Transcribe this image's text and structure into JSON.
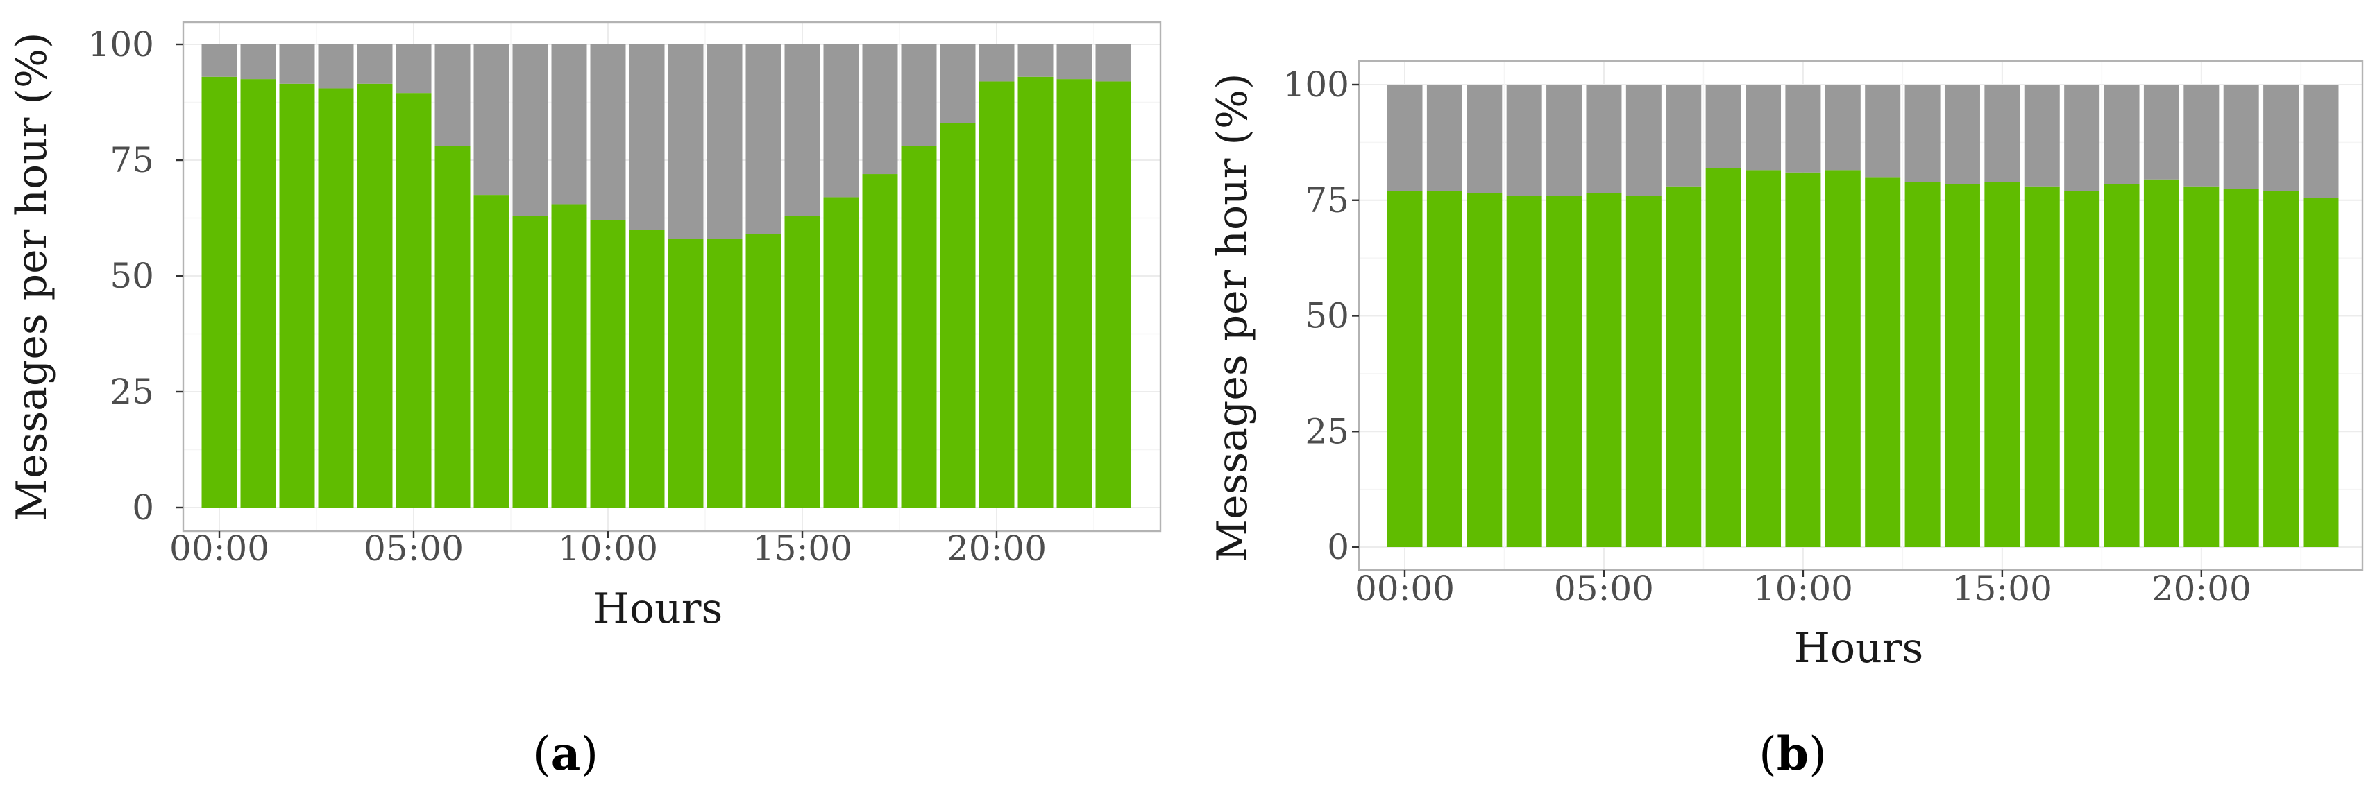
{
  "colors": {
    "bar_base": "#60bc00",
    "bar_rest": "#999999"
  },
  "chart_data": [
    {
      "panel_label": "a",
      "type": "bar",
      "stacked": true,
      "xlabel": "Hours",
      "ylabel": "Messages per hour (%)",
      "ylim": [
        0,
        100
      ],
      "yticks": [
        "0",
        "25",
        "50",
        "75",
        "100"
      ],
      "xticks": [
        "00:00",
        "05:00",
        "10:00",
        "15:00",
        "20:00"
      ],
      "xtick_hours": [
        0,
        5,
        10,
        15,
        20
      ],
      "grid": true,
      "categories": [
        "00:00",
        "01:00",
        "02:00",
        "03:00",
        "04:00",
        "05:00",
        "06:00",
        "07:00",
        "08:00",
        "09:00",
        "10:00",
        "11:00",
        "12:00",
        "13:00",
        "14:00",
        "15:00",
        "16:00",
        "17:00",
        "18:00",
        "19:00",
        "20:00",
        "21:00",
        "22:00",
        "23:00"
      ],
      "series": [
        {
          "values": [
            93,
            92.5,
            91.5,
            90.5,
            91.5,
            89.5,
            78,
            67.5,
            63,
            65.5,
            62,
            60,
            58,
            58,
            59,
            63,
            67,
            72,
            78,
            83,
            92,
            93,
            92.5,
            92
          ]
        },
        {
          "values": [
            7,
            7.5,
            8.5,
            9.5,
            8.5,
            10.5,
            22,
            32.5,
            37,
            34.5,
            38,
            40,
            42,
            42,
            41,
            37,
            33,
            28,
            22,
            17,
            8,
            7,
            7.5,
            8
          ]
        }
      ]
    },
    {
      "panel_label": "b",
      "type": "bar",
      "stacked": true,
      "xlabel": "Hours",
      "ylabel": "Messages per hour (%)",
      "ylim": [
        0,
        100
      ],
      "yticks": [
        "0",
        "25",
        "50",
        "75",
        "100"
      ],
      "xticks": [
        "00:00",
        "05:00",
        "10:00",
        "15:00",
        "20:00"
      ],
      "xtick_hours": [
        0,
        5,
        10,
        15,
        20
      ],
      "grid": true,
      "categories": [
        "00:00",
        "01:00",
        "02:00",
        "03:00",
        "04:00",
        "05:00",
        "06:00",
        "07:00",
        "08:00",
        "09:00",
        "10:00",
        "11:00",
        "12:00",
        "13:00",
        "14:00",
        "15:00",
        "16:00",
        "17:00",
        "18:00",
        "19:00",
        "20:00",
        "21:00",
        "22:00",
        "23:00"
      ],
      "series": [
        {
          "values": [
            77,
            77,
            76.5,
            76,
            76,
            76.5,
            76,
            78,
            82,
            81.5,
            81,
            81.5,
            80,
            79,
            78.5,
            79,
            78,
            77,
            78.5,
            79.5,
            78,
            77.5,
            77,
            75.5
          ]
        },
        {
          "values": [
            23,
            23,
            23.5,
            24,
            24,
            23.5,
            24,
            22,
            18,
            18.5,
            19,
            18.5,
            20,
            21,
            21.5,
            21,
            22,
            23,
            21.5,
            20.5,
            22,
            22.5,
            23,
            24.5
          ]
        }
      ]
    }
  ]
}
